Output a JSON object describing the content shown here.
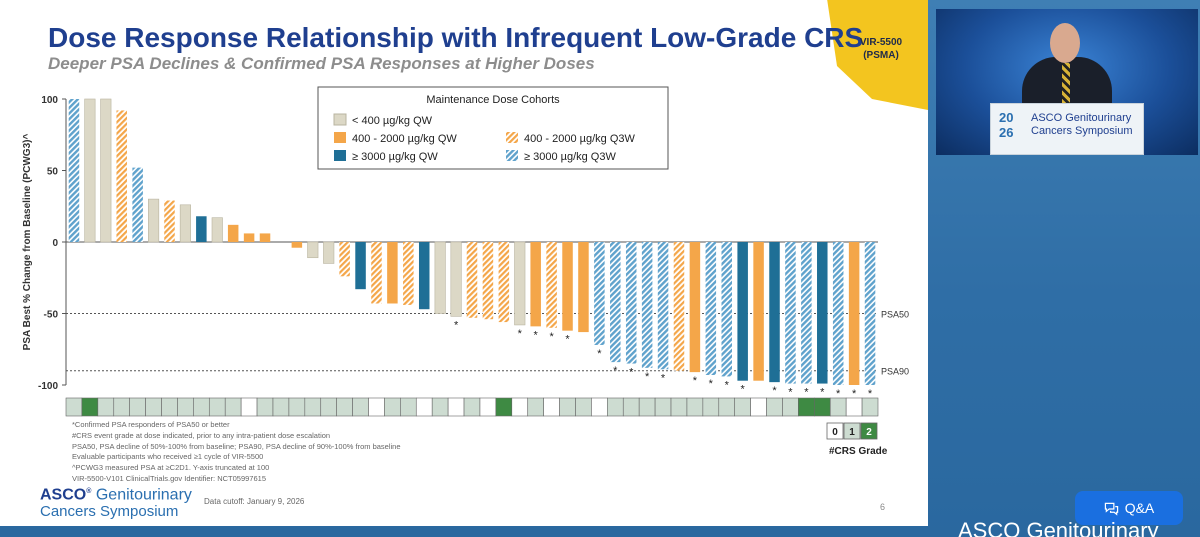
{
  "slide": {
    "title": "Dose Response Relationship with Infrequent Low-Grade CRS",
    "subtitle": "Deeper PSA Declines & Confirmed PSA Responses at Higher Doses",
    "drug_line1": "VIR-5500",
    "drug_line2": "(PSMA)",
    "footnotes": [
      "*Confirmed PSA responders of PSA50 or better",
      "#CRS event grade at dose indicated, prior to any intra-patient dose escalation",
      "PSA50, PSA decline of 50%-100% from baseline; PSA90, PSA decline of 90%-100% from baseline",
      "Evaluable participants who received ≥1 cycle of VIR-5500",
      "^PCWG3 measured PSA at ≥C2D1. Y-axis truncated at 100",
      "VIR-5500-V101 ClinicalTrials.gov Identifier: NCT05997615"
    ],
    "cutoff": "Data cutoff: January 9, 2026",
    "page_number": "6",
    "logo_line1_bold": "ASCO",
    "logo_line1_rest": "Genitourinary",
    "logo_line2": "Cancers Symposium",
    "crs_grade_label": "#CRS Grade"
  },
  "colors": {
    "title": "#1f3f8f",
    "c1": "#dcd8c6",
    "c2": "#f4a649",
    "c3": "#1f6f96",
    "c4": "#6aa8cf",
    "g0": "#ffffff",
    "g1": "#cddcd1",
    "g2": "#3e8a43"
  },
  "chart_data": {
    "type": "bar",
    "title": "",
    "ylabel": "PSA Best % Change from Baseline (PCWG3)^",
    "ylim": [
      -100,
      100
    ],
    "yticks": [
      "100",
      "50",
      "0",
      "-50",
      "-100"
    ],
    "reference_lines": [
      {
        "value": -50,
        "label": "PSA50"
      },
      {
        "value": -90,
        "label": "PSA90"
      }
    ],
    "legend_title": "Maintenance Dose Cohorts",
    "cohorts": [
      {
        "id": "c1",
        "label": "< 400 µg/kg QW",
        "hatched": false
      },
      {
        "id": "c2",
        "label": "400 - 2000 µg/kg QW",
        "hatched": false
      },
      {
        "id": "c2h",
        "label": "400 - 2000 µg/kg Q3W",
        "hatched": true
      },
      {
        "id": "c3",
        "label": "≥ 3000 µg/kg QW",
        "hatched": false
      },
      {
        "id": "c4h",
        "label": "≥ 3000 µg/kg Q3W",
        "hatched": true
      }
    ],
    "bars": [
      {
        "v": 100,
        "c": "c4h",
        "s": false,
        "g": 1
      },
      {
        "v": 100,
        "c": "c1",
        "s": false,
        "g": 2
      },
      {
        "v": 100,
        "c": "c1",
        "s": false,
        "g": 1
      },
      {
        "v": 92,
        "c": "c2h",
        "s": false,
        "g": 1
      },
      {
        "v": 52,
        "c": "c4h",
        "s": false,
        "g": 1
      },
      {
        "v": 30,
        "c": "c1",
        "s": false,
        "g": 1
      },
      {
        "v": 29,
        "c": "c2h",
        "s": false,
        "g": 1
      },
      {
        "v": 26,
        "c": "c1",
        "s": false,
        "g": 1
      },
      {
        "v": 18,
        "c": "c3",
        "s": false,
        "g": 1
      },
      {
        "v": 17,
        "c": "c1",
        "s": false,
        "g": 1
      },
      {
        "v": 12,
        "c": "c2",
        "s": false,
        "g": 1
      },
      {
        "v": 6,
        "c": "c2",
        "s": false,
        "g": 0
      },
      {
        "v": 6,
        "c": "c2",
        "s": false,
        "g": 1
      },
      {
        "v": 0,
        "c": "c1",
        "s": false,
        "g": 1
      },
      {
        "v": -4,
        "c": "c2",
        "s": false,
        "g": 1
      },
      {
        "v": -11,
        "c": "c1",
        "s": false,
        "g": 1
      },
      {
        "v": -15,
        "c": "c1",
        "s": false,
        "g": 1
      },
      {
        "v": -24,
        "c": "c2h",
        "s": false,
        "g": 1
      },
      {
        "v": -33,
        "c": "c3",
        "s": false,
        "g": 1
      },
      {
        "v": -43,
        "c": "c2h",
        "s": false,
        "g": 0
      },
      {
        "v": -43,
        "c": "c2",
        "s": false,
        "g": 1
      },
      {
        "v": -44,
        "c": "c2h",
        "s": false,
        "g": 1
      },
      {
        "v": -47,
        "c": "c3",
        "s": false,
        "g": 0
      },
      {
        "v": -50,
        "c": "c1",
        "s": false,
        "g": 1
      },
      {
        "v": -52,
        "c": "c1",
        "s": true,
        "g": 0
      },
      {
        "v": -53,
        "c": "c2h",
        "s": false,
        "g": 1
      },
      {
        "v": -54,
        "c": "c2h",
        "s": false,
        "g": 0
      },
      {
        "v": -56,
        "c": "c2h",
        "s": false,
        "g": 2
      },
      {
        "v": -58,
        "c": "c1",
        "s": true,
        "g": 0
      },
      {
        "v": -59,
        "c": "c2",
        "s": true,
        "g": 1
      },
      {
        "v": -60,
        "c": "c2h",
        "s": true,
        "g": 0
      },
      {
        "v": -62,
        "c": "c2",
        "s": true,
        "g": 1
      },
      {
        "v": -63,
        "c": "c2",
        "s": false,
        "g": 1
      },
      {
        "v": -72,
        "c": "c4h",
        "s": true,
        "g": 0
      },
      {
        "v": -84,
        "c": "c4h",
        "s": true,
        "g": 1
      },
      {
        "v": -85,
        "c": "c4h",
        "s": true,
        "g": 1
      },
      {
        "v": -88,
        "c": "c4h",
        "s": true,
        "g": 1
      },
      {
        "v": -89,
        "c": "c4h",
        "s": true,
        "g": 1
      },
      {
        "v": -90,
        "c": "c2h",
        "s": false,
        "g": 1
      },
      {
        "v": -91,
        "c": "c2",
        "s": true,
        "g": 1
      },
      {
        "v": -93,
        "c": "c4h",
        "s": true,
        "g": 1
      },
      {
        "v": -94,
        "c": "c4h",
        "s": true,
        "g": 1
      },
      {
        "v": -97,
        "c": "c3",
        "s": true,
        "g": 1
      },
      {
        "v": -97,
        "c": "c2",
        "s": false,
        "g": 0
      },
      {
        "v": -98,
        "c": "c3",
        "s": true,
        "g": 1
      },
      {
        "v": -99,
        "c": "c4h",
        "s": true,
        "g": 1
      },
      {
        "v": -99,
        "c": "c4h",
        "s": true,
        "g": 2
      },
      {
        "v": -99,
        "c": "c3",
        "s": true,
        "g": 2
      },
      {
        "v": -100,
        "c": "c4h",
        "s": true,
        "g": 1
      },
      {
        "v": -100,
        "c": "c2",
        "s": true,
        "g": 0
      },
      {
        "v": -100,
        "c": "c4h",
        "s": true,
        "g": 1
      }
    ],
    "crs_scale": [
      "0",
      "1",
      "2"
    ]
  },
  "video": {
    "podium_year": "20\n26",
    "podium_line1": "ASCO Genitourinary",
    "podium_line2": "Cancers Symposium"
  },
  "qa": {
    "label": "Q&A",
    "icon": "chat-bubbles-icon"
  },
  "bottom_brand": "ASCO Genitourinary"
}
